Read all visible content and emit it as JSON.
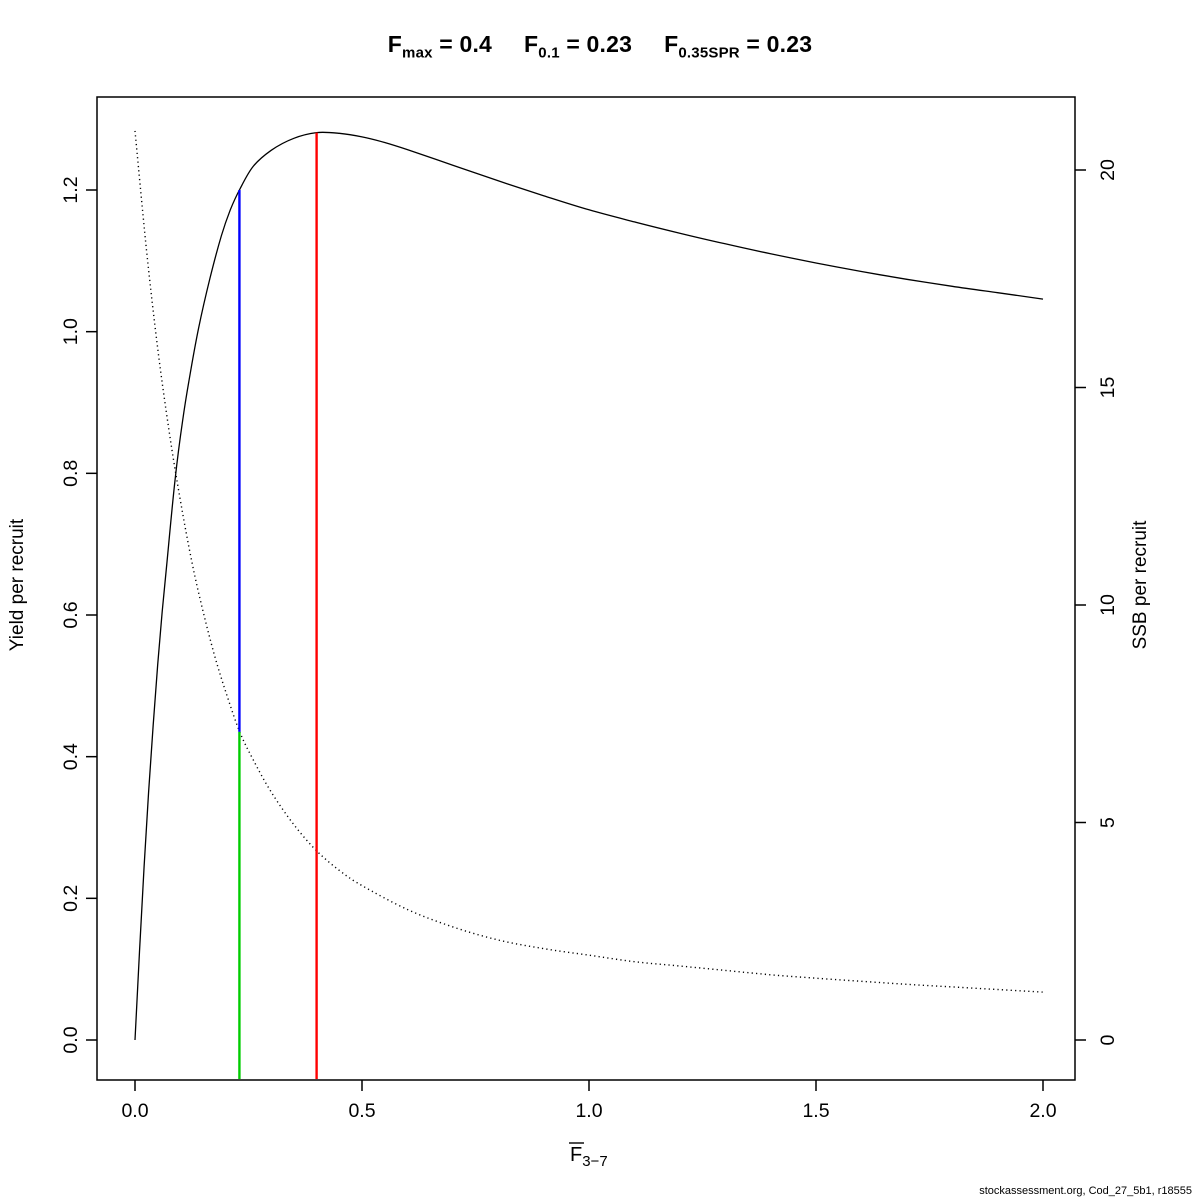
{
  "title": {
    "segments": [
      {
        "base": "F",
        "sub": "max",
        "eq": " = 0.4"
      },
      {
        "base": "F",
        "sub": "0.1",
        "eq": " = 0.23"
      },
      {
        "base": "F",
        "sub": "0.35SPR",
        "eq": " = 0.23"
      }
    ]
  },
  "footer": "stockassessment.org, Cod_27_5b1, r18555",
  "chart_data": {
    "type": "line",
    "title": "Fmax = 0.4, F0.1 = 0.23, F0.35SPR = 0.23",
    "xlabel": "F̄3−7",
    "xlabel_parts": {
      "base": "F",
      "sub": "3−7",
      "overline": true
    },
    "ylabel_left": "Yield per recruit",
    "ylabel_right": "SSB per recruit",
    "xlim": [
      0,
      2
    ],
    "ylim_left": [
      0,
      1.2
    ],
    "ylim_right": [
      0,
      20
    ],
    "grid": false,
    "legend": "none",
    "x_ticks": {
      "values": [
        0,
        0.5,
        1,
        1.5,
        2
      ],
      "labels": [
        "0.0",
        "0.5",
        "1.0",
        "1.5",
        "2.0"
      ]
    },
    "y_ticks_left": {
      "values": [
        0,
        0.2,
        0.4,
        0.6,
        0.8,
        1.0,
        1.2
      ],
      "labels": [
        "0.0",
        "0.2",
        "0.4",
        "0.6",
        "0.8",
        "1.0",
        "1.2"
      ]
    },
    "y_ticks_right": {
      "values": [
        0,
        5,
        10,
        15,
        20
      ],
      "labels": [
        "0",
        "5",
        "10",
        "15",
        "20"
      ]
    },
    "series": [
      {
        "id": "yield",
        "name": "Yield per recruit",
        "axis": "left",
        "style": "solid",
        "color": "#000000",
        "x": [
          0,
          0.01,
          0.02,
          0.03,
          0.04,
          0.05,
          0.06,
          0.07,
          0.088,
          0.105,
          0.12,
          0.14,
          0.165,
          0.19,
          0.21,
          0.23,
          0.26,
          0.3,
          0.35,
          0.4,
          0.45,
          0.5,
          0.55,
          0.6,
          0.7,
          0.8,
          0.9,
          1.0,
          1.1,
          1.2,
          1.3,
          1.4,
          1.5,
          1.6,
          1.7,
          1.8,
          1.9,
          2.0
        ],
        "y": [
          0,
          0.125,
          0.245,
          0.35,
          0.445,
          0.53,
          0.605,
          0.672,
          0.79,
          0.875,
          0.935,
          1.005,
          1.075,
          1.135,
          1.172,
          1.2,
          1.233,
          1.256,
          1.273,
          1.281,
          1.28,
          1.275,
          1.267,
          1.257,
          1.235,
          1.213,
          1.192,
          1.172,
          1.155,
          1.139,
          1.124,
          1.11,
          1.097,
          1.085,
          1.074,
          1.064,
          1.055,
          1.046
        ]
      },
      {
        "id": "ssb",
        "name": "SSB per recruit",
        "axis": "right",
        "style": "dotted",
        "color": "#000000",
        "x": [
          0,
          0.025,
          0.05,
          0.075,
          0.1,
          0.125,
          0.15,
          0.175,
          0.2,
          0.23,
          0.26,
          0.3,
          0.35,
          0.4,
          0.45,
          0.5,
          0.6,
          0.7,
          0.8,
          0.9,
          1.0,
          1.1,
          1.2,
          1.3,
          1.4,
          1.5,
          1.6,
          1.7,
          1.8,
          1.9,
          2.0
        ],
        "y": [
          20.9,
          18.2,
          15.9,
          14,
          12.4,
          11,
          9.85,
          8.85,
          8,
          7.1,
          6.45,
          5.7,
          4.95,
          4.35,
          3.9,
          3.55,
          3,
          2.6,
          2.3,
          2.1,
          1.95,
          1.8,
          1.7,
          1.6,
          1.5,
          1.42,
          1.35,
          1.28,
          1.22,
          1.16,
          1.1
        ]
      }
    ],
    "ref_lines": [
      {
        "id": "fmax",
        "name": "Fmax = 0.4",
        "x": 0.4,
        "y_from": -0.055,
        "y_to": 1.281,
        "axis": "left",
        "color": "#ff0000"
      },
      {
        "id": "f01",
        "name": "F0.1 = 0.23",
        "x": 0.23,
        "y_from": 0.435,
        "y_to": 1.2,
        "axis": "left",
        "color": "#0000ff"
      },
      {
        "id": "f035spr",
        "name": "F0.35SPR = 0.23",
        "x": 0.23,
        "y_from": -0.055,
        "y_to": 0.435,
        "axis": "left",
        "color": "#00cc00"
      }
    ]
  }
}
